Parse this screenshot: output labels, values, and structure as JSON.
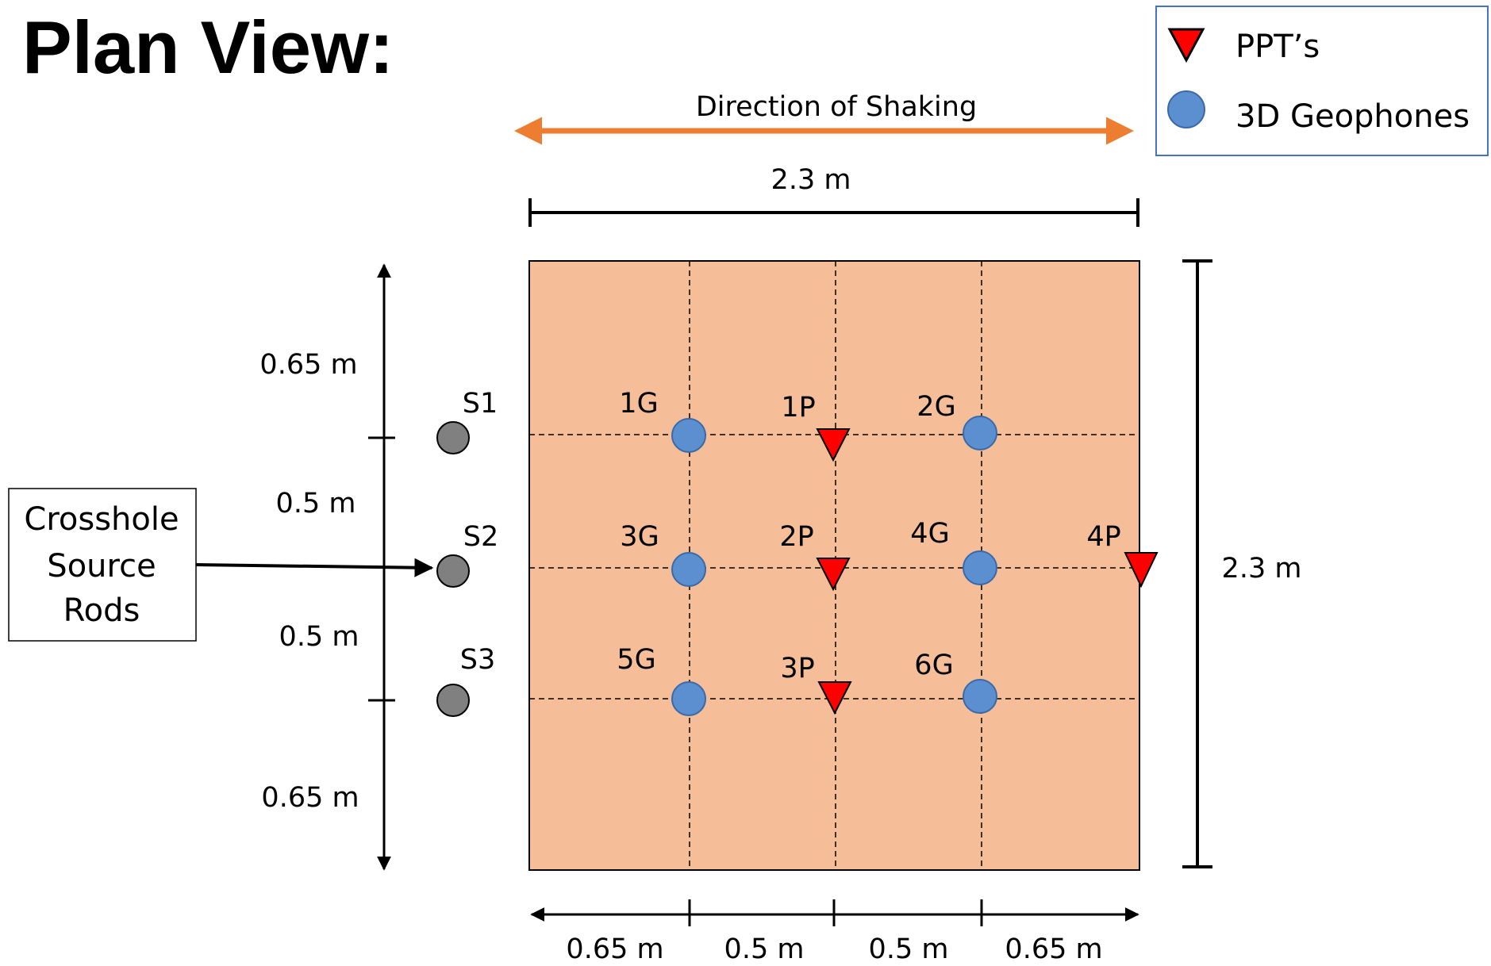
{
  "title": "Plan View:",
  "legend": {
    "ppt_label": "PPT’s",
    "geophone_label": "3D Geophones"
  },
  "shaking_label": "Direction of Shaking",
  "dims": {
    "top_width": "2.3 m",
    "right_height": "2.3 m",
    "left": [
      "0.65 m",
      "0.5 m",
      "0.5 m",
      "0.65 m"
    ],
    "bottom": [
      "0.65 m",
      "0.5 m",
      "0.5 m",
      "0.65 m"
    ]
  },
  "source_box": [
    "Crosshole",
    "Source",
    "Rods"
  ],
  "sources": [
    "S1",
    "S2",
    "S3"
  ],
  "geophones": [
    "1G",
    "2G",
    "3G",
    "4G",
    "5G",
    "6G"
  ],
  "ppts": [
    "1P",
    "2P",
    "3P",
    "4P"
  ],
  "colors": {
    "box_fill": "#F5BE98",
    "geophone": "#5B8FD0",
    "ppt": "#FF0000",
    "source": "#808080",
    "arrow": "#ED7D31",
    "legend_border": "#4472C4"
  }
}
